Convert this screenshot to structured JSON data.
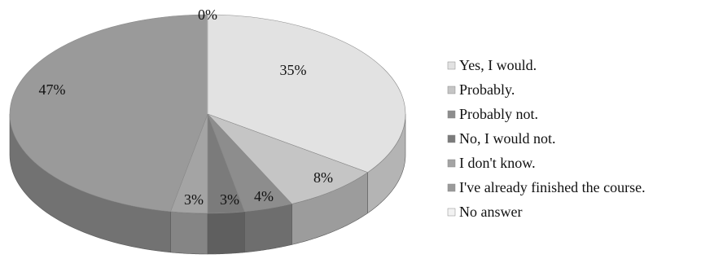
{
  "chart_data": {
    "type": "pie",
    "style": "3d",
    "title": "",
    "legend_position": "right",
    "slices": [
      {
        "label": "Yes, I would.",
        "value": 35,
        "value_label": "35%",
        "color": "#e2e2e2",
        "side_color": "#b4b4b4"
      },
      {
        "label": "Probably.",
        "value": 8,
        "value_label": "8%",
        "color": "#c5c5c5",
        "side_color": "#9c9c9c"
      },
      {
        "label": "Probably not.",
        "value": 4,
        "value_label": "4%",
        "color": "#8d8d8d",
        "side_color": "#6e6e6e"
      },
      {
        "label": "No, I would not.",
        "value": 3,
        "value_label": "3%",
        "color": "#7b7b7b",
        "side_color": "#5f5f5f"
      },
      {
        "label": "I don't know.",
        "value": 3,
        "value_label": "3%",
        "color": "#a4a4a4",
        "side_color": "#858585"
      },
      {
        "label": "I've already finished the course.",
        "value": 47,
        "value_label": "47%",
        "color": "#9a9a9a",
        "side_color": "#727272"
      },
      {
        "label": "No answer",
        "value": 0,
        "value_label": "0%",
        "color": "#f2f2f2",
        "side_color": "#d0d0d0"
      }
    ]
  }
}
